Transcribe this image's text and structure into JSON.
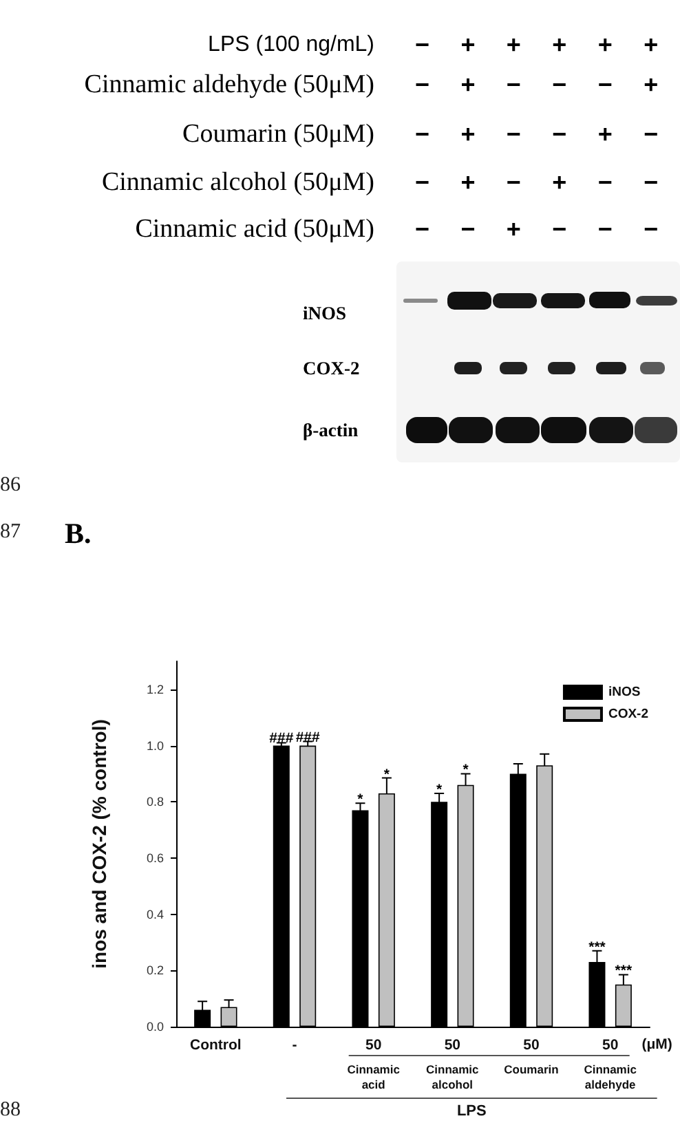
{
  "chart_data": [
    {
      "type": "other",
      "annotations": [
        "LPS (100 ng/mL)",
        "Cinnamic aldehyde (50μM)",
        "Coumarin (50μM)",
        "Cinnamic alcohol (50μM)",
        "Cinnamic acid (50μM)",
        "− + + + + +",
        "− + − − − +",
        "− + − − + −",
        "− + − + − −",
        "− − + − − −",
        "iNOS",
        "COX-2",
        "β-actin",
        "86"
      ]
    },
    {
      "type": "bar",
      "title": "B.",
      "ylabel": "inos and COX-2 (% control)",
      "categories": [
        "Control",
        "-",
        "50",
        "50",
        "50",
        "50"
      ],
      "series": [
        {
          "name": "iNOS",
          "color": "#000000",
          "values": [
            0.06,
            1.0,
            0.77,
            0.8,
            0.9,
            0.23
          ],
          "errors": [
            0.03,
            0.01,
            0.025,
            0.03,
            0.035,
            0.04
          ],
          "value_labels": [
            null,
            "###",
            "*",
            "*",
            null,
            "***"
          ]
        },
        {
          "name": "COX-2",
          "color": "#c0c0c0",
          "values": [
            0.07,
            1.0,
            0.83,
            0.86,
            0.93,
            0.15
          ],
          "errors": [
            0.025,
            0.015,
            0.055,
            0.04,
            0.04,
            0.035
          ],
          "value_labels": [
            null,
            "###",
            "*",
            "*",
            null,
            "***"
          ]
        }
      ],
      "ylim": [
        0,
        1.3
      ],
      "yticks": [
        {
          "value": 0,
          "label": "0.0"
        },
        0.2,
        0.4,
        0.6,
        0.8,
        {
          "value": 1,
          "label": "1.0"
        },
        1.2
      ],
      "legend": "top right",
      "annotations": [
        "(μM)",
        "Cinnamic acid",
        "Cinnamic alcohol",
        "Coumarin",
        "Cinnamic aldehyde",
        "LPS",
        "87",
        "88"
      ]
    }
  ]
}
